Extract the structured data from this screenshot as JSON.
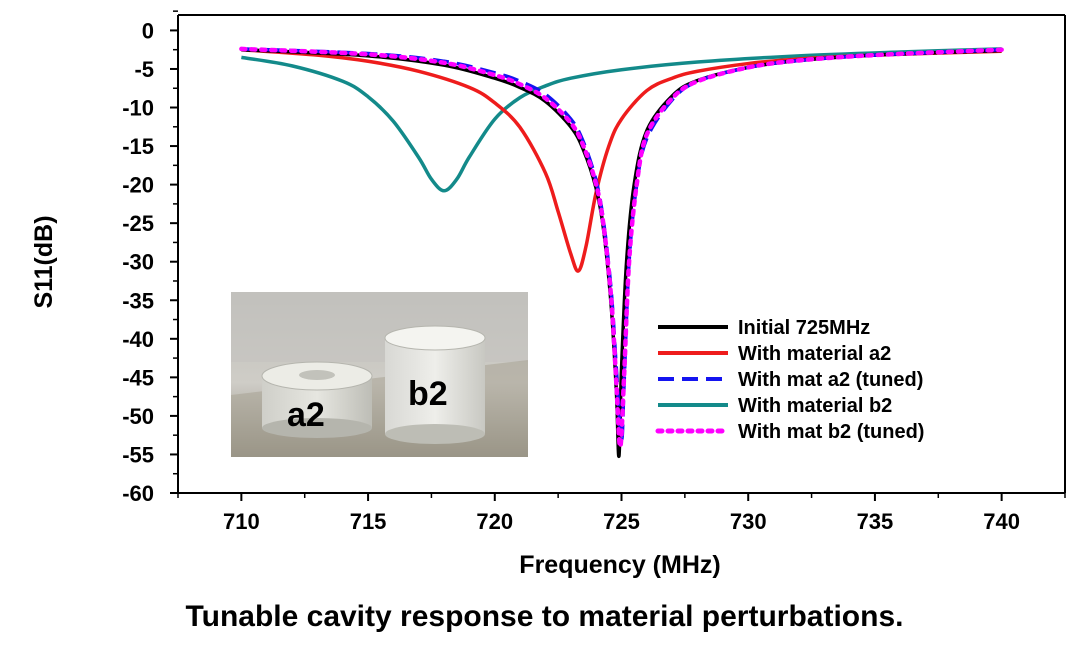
{
  "caption": "Tunable cavity response to material perturbations.",
  "chart_data": {
    "type": "line",
    "xlabel": "Frequency (MHz)",
    "ylabel": "S11(dB)",
    "xlim": [
      707.5,
      742.5
    ],
    "ylim": [
      -60,
      2
    ],
    "xticks": [
      710,
      715,
      720,
      725,
      730,
      735,
      740
    ],
    "yticks": [
      0,
      -5,
      -10,
      -15,
      -20,
      -25,
      -30,
      -35,
      -40,
      -45,
      -50,
      -55,
      -60
    ],
    "grid": false,
    "legend_position": "lower-right",
    "series": [
      {
        "name": "Initial 725MHz",
        "color": "#000000",
        "style": "solid",
        "x": [
          710,
          715,
          718,
          720,
          721,
          722,
          723,
          723.5,
          724,
          724.3,
          724.6,
          724.8,
          724.9,
          725.0,
          725.2,
          725.5,
          726,
          727,
          728,
          730,
          732,
          735,
          740
        ],
        "y": [
          -2.5,
          -3.3,
          -4.5,
          -6.2,
          -7.4,
          -9.2,
          -12.5,
          -15.5,
          -20.5,
          -26,
          -36,
          -47,
          -55.2,
          -44,
          -30,
          -20,
          -13,
          -8.5,
          -6.5,
          -4.8,
          -3.9,
          -3.2,
          -2.6
        ]
      },
      {
        "name": "With material a2",
        "color": "#ee1c1c",
        "style": "solid",
        "x": [
          710,
          713,
          715,
          717,
          719,
          720,
          721,
          722,
          722.5,
          723,
          723.3,
          723.6,
          724,
          724.5,
          725,
          726,
          727,
          728,
          730,
          732,
          735,
          740
        ],
        "y": [
          -2.5,
          -3.2,
          -4.0,
          -5.3,
          -7.4,
          -9.4,
          -12.6,
          -18.5,
          -23.5,
          -29,
          -31.2,
          -28,
          -21,
          -15,
          -11.5,
          -7.8,
          -6.2,
          -5.3,
          -4.3,
          -3.7,
          -3.2,
          -2.7
        ]
      },
      {
        "name": "With mat a2 (tuned)",
        "color": "#1414f0",
        "style": "dashed",
        "x": [
          710,
          715,
          718,
          720,
          721,
          722,
          723,
          723.5,
          724,
          724.3,
          724.6,
          724.8,
          725.0,
          725.1,
          725.3,
          725.6,
          726,
          727,
          728,
          730,
          732,
          735,
          740
        ],
        "y": [
          -2.4,
          -3.0,
          -4.0,
          -5.5,
          -6.6,
          -8.3,
          -11.5,
          -14.5,
          -19.5,
          -25,
          -34,
          -44,
          -53,
          -46,
          -30,
          -20,
          -14,
          -9,
          -6.6,
          -4.8,
          -3.9,
          -3.2,
          -2.5
        ]
      },
      {
        "name": "With material b2",
        "color": "#138a8a",
        "style": "solid",
        "x": [
          710,
          712,
          714,
          715,
          716,
          717,
          717.5,
          718,
          718.5,
          719,
          720,
          721,
          722,
          723,
          725,
          728,
          732,
          736,
          740
        ],
        "y": [
          -3.5,
          -4.6,
          -6.6,
          -8.6,
          -11.8,
          -16.5,
          -19.3,
          -20.8,
          -19.3,
          -16.4,
          -11.5,
          -8.7,
          -7.2,
          -6.2,
          -5.1,
          -4.1,
          -3.3,
          -2.8,
          -2.4
        ]
      },
      {
        "name": "With mat b2 (tuned)",
        "color": "#ff00ff",
        "style": "dotted",
        "x": [
          710,
          715,
          718,
          720,
          721,
          722,
          723,
          723.5,
          724,
          724.3,
          724.6,
          724.8,
          724.95,
          725.1,
          725.3,
          725.6,
          726,
          727,
          728,
          730,
          732,
          735,
          740
        ],
        "y": [
          -2.4,
          -3.1,
          -4.2,
          -5.8,
          -7.0,
          -8.8,
          -12.0,
          -15.0,
          -20.0,
          -25.5,
          -35,
          -46,
          -54,
          -45,
          -30,
          -20,
          -13.5,
          -8.8,
          -6.6,
          -4.8,
          -3.9,
          -3.2,
          -2.5
        ]
      }
    ],
    "inset_labels": [
      "a2",
      "b2"
    ]
  }
}
